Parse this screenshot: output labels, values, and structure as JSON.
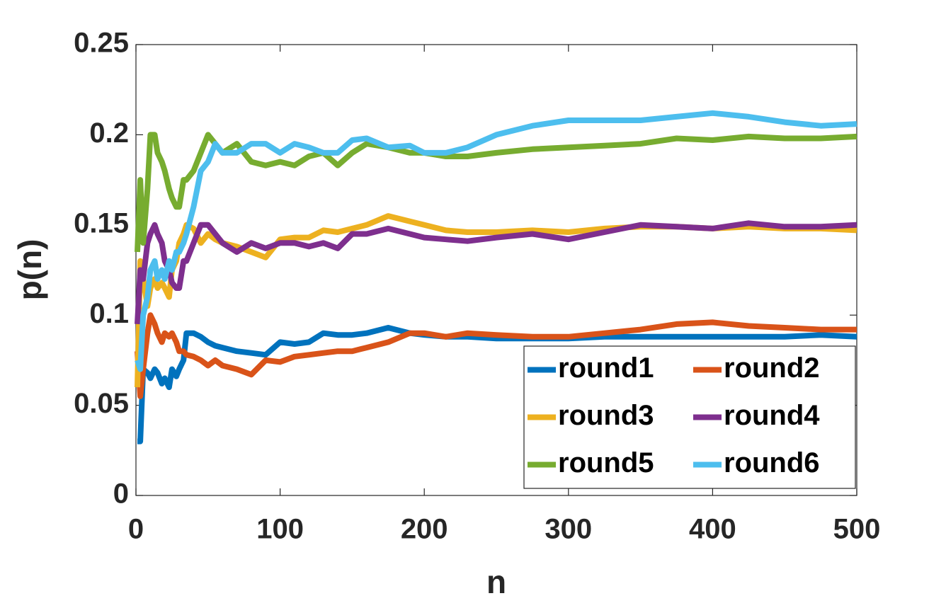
{
  "chart_data": {
    "type": "line",
    "x_label": "n",
    "y_label": "p(n)",
    "x": [
      1,
      3,
      5,
      8,
      10,
      13,
      15,
      18,
      20,
      23,
      25,
      28,
      30,
      33,
      35,
      40,
      45,
      50,
      55,
      60,
      70,
      80,
      90,
      100,
      110,
      120,
      130,
      140,
      150,
      160,
      175,
      190,
      200,
      215,
      230,
      250,
      275,
      300,
      325,
      350,
      375,
      400,
      425,
      450,
      475,
      500
    ],
    "series": [
      {
        "name": "round1",
        "color": "#0072bd",
        "values": [
          0.03,
          0.03,
          0.07,
          0.068,
          0.065,
          0.07,
          0.068,
          0.062,
          0.065,
          0.06,
          0.07,
          0.066,
          0.07,
          0.075,
          0.09,
          0.09,
          0.088,
          0.085,
          0.083,
          0.082,
          0.08,
          0.079,
          0.078,
          0.085,
          0.084,
          0.085,
          0.09,
          0.089,
          0.089,
          0.09,
          0.093,
          0.09,
          0.089,
          0.088,
          0.088,
          0.087,
          0.087,
          0.087,
          0.088,
          0.088,
          0.088,
          0.088,
          0.088,
          0.088,
          0.089,
          0.088
        ]
      },
      {
        "name": "round2",
        "color": "#d95319",
        "values": [
          0.08,
          0.055,
          0.07,
          0.09,
          0.1,
          0.095,
          0.09,
          0.085,
          0.09,
          0.088,
          0.09,
          0.085,
          0.08,
          0.08,
          0.078,
          0.077,
          0.075,
          0.072,
          0.075,
          0.072,
          0.07,
          0.067,
          0.075,
          0.074,
          0.077,
          0.078,
          0.079,
          0.08,
          0.08,
          0.082,
          0.085,
          0.09,
          0.09,
          0.088,
          0.09,
          0.089,
          0.088,
          0.088,
          0.09,
          0.092,
          0.095,
          0.096,
          0.094,
          0.093,
          0.092,
          0.092
        ]
      },
      {
        "name": "round3",
        "color": "#edb120",
        "values": [
          0.06,
          0.13,
          0.12,
          0.105,
          0.115,
          0.12,
          0.115,
          0.118,
          0.115,
          0.11,
          0.125,
          0.13,
          0.14,
          0.145,
          0.15,
          0.148,
          0.14,
          0.145,
          0.142,
          0.14,
          0.138,
          0.135,
          0.132,
          0.142,
          0.143,
          0.143,
          0.147,
          0.146,
          0.148,
          0.15,
          0.155,
          0.152,
          0.15,
          0.147,
          0.146,
          0.146,
          0.147,
          0.146,
          0.148,
          0.149,
          0.149,
          0.148,
          0.149,
          0.148,
          0.148,
          0.147
        ]
      },
      {
        "name": "round4",
        "color": "#7e2f8e",
        "values": [
          0.095,
          0.125,
          0.12,
          0.14,
          0.145,
          0.15,
          0.145,
          0.14,
          0.13,
          0.125,
          0.118,
          0.115,
          0.115,
          0.13,
          0.13,
          0.14,
          0.15,
          0.15,
          0.145,
          0.14,
          0.135,
          0.14,
          0.137,
          0.14,
          0.14,
          0.138,
          0.14,
          0.137,
          0.145,
          0.145,
          0.148,
          0.145,
          0.143,
          0.142,
          0.141,
          0.143,
          0.145,
          0.142,
          0.146,
          0.15,
          0.149,
          0.148,
          0.151,
          0.149,
          0.149,
          0.15
        ]
      },
      {
        "name": "round5",
        "color": "#77ac30",
        "values": [
          0.135,
          0.175,
          0.14,
          0.17,
          0.2,
          0.2,
          0.19,
          0.185,
          0.18,
          0.17,
          0.165,
          0.16,
          0.16,
          0.175,
          0.175,
          0.18,
          0.19,
          0.2,
          0.195,
          0.19,
          0.195,
          0.185,
          0.183,
          0.185,
          0.183,
          0.188,
          0.19,
          0.183,
          0.19,
          0.195,
          0.193,
          0.19,
          0.19,
          0.188,
          0.188,
          0.19,
          0.192,
          0.193,
          0.194,
          0.195,
          0.198,
          0.197,
          0.199,
          0.198,
          0.198,
          0.199
        ]
      },
      {
        "name": "round6",
        "color": "#4dbeee",
        "values": [
          0.075,
          0.07,
          0.1,
          0.11,
          0.125,
          0.13,
          0.12,
          0.125,
          0.12,
          0.13,
          0.125,
          0.135,
          0.135,
          0.14,
          0.145,
          0.16,
          0.18,
          0.185,
          0.195,
          0.19,
          0.19,
          0.195,
          0.195,
          0.19,
          0.195,
          0.193,
          0.19,
          0.19,
          0.197,
          0.198,
          0.193,
          0.194,
          0.19,
          0.19,
          0.193,
          0.2,
          0.205,
          0.208,
          0.208,
          0.208,
          0.21,
          0.212,
          0.21,
          0.207,
          0.205,
          0.206
        ]
      }
    ],
    "xlim": [
      0,
      500
    ],
    "xticks": [
      0,
      100,
      200,
      300,
      400,
      500
    ],
    "ylim": [
      0,
      0.25
    ],
    "yticks": [
      0,
      0.05,
      0.1,
      0.15,
      0.2,
      0.25
    ],
    "grid": false,
    "legend": "lower right",
    "legend_columns": 2
  }
}
